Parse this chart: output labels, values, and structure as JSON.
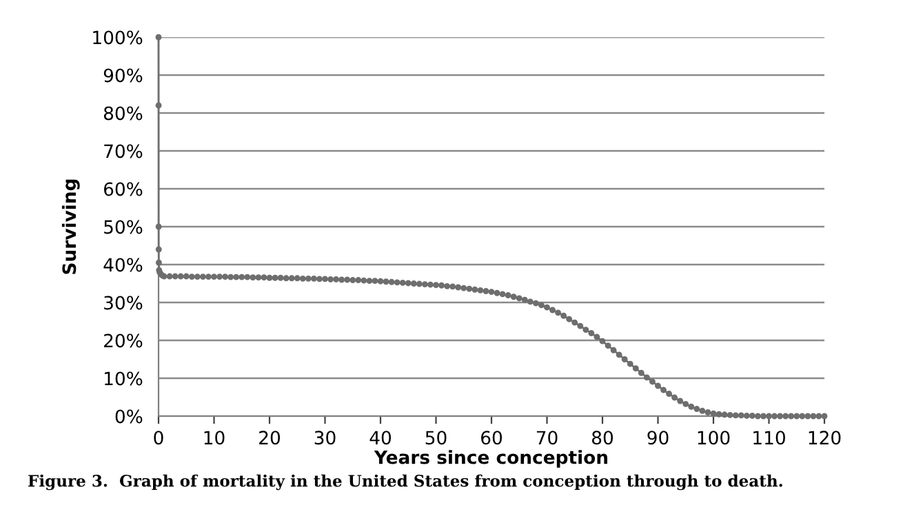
{
  "chart_data": {
    "type": "line",
    "xlabel": "Years since conception",
    "ylabel": "Surviving",
    "annotations": [
      "Figure 3.  Graph of mortality in the United States from conception through to death."
    ],
    "series": [
      {
        "color": "#6e6e6e",
        "x": [
          0,
          0.01,
          0.02,
          0.03,
          0.05,
          0.1,
          0.2,
          0.4,
          0.7,
          1,
          2,
          3,
          4,
          5,
          6,
          7,
          8,
          9,
          10,
          11,
          12,
          13,
          14,
          15,
          16,
          17,
          18,
          19,
          20,
          21,
          22,
          23,
          24,
          25,
          26,
          27,
          28,
          29,
          30,
          31,
          32,
          33,
          34,
          35,
          36,
          37,
          38,
          39,
          40,
          41,
          42,
          43,
          44,
          45,
          46,
          47,
          48,
          49,
          50,
          51,
          52,
          53,
          54,
          55,
          56,
          57,
          58,
          59,
          60,
          61,
          62,
          63,
          64,
          65,
          66,
          67,
          68,
          69,
          70,
          71,
          72,
          73,
          74,
          75,
          76,
          77,
          78,
          79,
          80,
          81,
          82,
          83,
          84,
          85,
          86,
          87,
          88,
          89,
          90,
          91,
          92,
          93,
          94,
          95,
          96,
          97,
          98,
          99,
          100,
          101,
          102,
          103,
          104,
          105,
          106,
          107,
          108,
          109,
          110,
          111,
          112,
          113,
          114,
          115,
          116,
          117,
          118,
          119,
          120
        ],
        "values": [
          100,
          82,
          50,
          44,
          40.5,
          38.5,
          38,
          37.5,
          37.1,
          36.9,
          36.9,
          36.9,
          36.9,
          36.9,
          36.8,
          36.8,
          36.8,
          36.8,
          36.8,
          36.8,
          36.8,
          36.7,
          36.7,
          36.7,
          36.7,
          36.6,
          36.6,
          36.6,
          36.5,
          36.5,
          36.5,
          36.4,
          36.4,
          36.4,
          36.3,
          36.3,
          36.3,
          36.2,
          36.2,
          36.1,
          36.1,
          36.0,
          36.0,
          35.9,
          35.9,
          35.8,
          35.7,
          35.7,
          35.6,
          35.5,
          35.4,
          35.3,
          35.2,
          35.1,
          35.0,
          34.9,
          34.8,
          34.7,
          34.6,
          34.5,
          34.3,
          34.2,
          34.0,
          33.8,
          33.6,
          33.4,
          33.2,
          33.0,
          32.8,
          32.5,
          32.2,
          31.9,
          31.5,
          31.1,
          30.7,
          30.2,
          29.8,
          29.3,
          28.7,
          28.0,
          27.3,
          26.5,
          25.6,
          24.7,
          23.8,
          22.8,
          21.9,
          20.9,
          19.8,
          18.6,
          17.4,
          16.2,
          15.0,
          13.8,
          12.6,
          11.4,
          10.2,
          9.1,
          8.0,
          6.9,
          5.9,
          4.9,
          4.0,
          3.2,
          2.5,
          1.9,
          1.4,
          1.0,
          0.7,
          0.5,
          0.4,
          0.3,
          0.2,
          0.2,
          0.1,
          0.1,
          0,
          0,
          0,
          0,
          0,
          0,
          0,
          0,
          0,
          0,
          0,
          0,
          0
        ]
      }
    ],
    "xlim": [
      0,
      120
    ],
    "xticks": [
      0,
      10,
      20,
      30,
      40,
      50,
      60,
      70,
      80,
      90,
      100,
      110,
      120
    ],
    "ylim": [
      0,
      100
    ],
    "yticks": [
      {
        "value": 0,
        "label": "0%"
      },
      {
        "value": 10,
        "label": "10%"
      },
      {
        "value": 20,
        "label": "20%"
      },
      {
        "value": 30,
        "label": "30%"
      },
      {
        "value": 40,
        "label": "40%"
      },
      {
        "value": 50,
        "label": "50%"
      },
      {
        "value": 60,
        "label": "60%"
      },
      {
        "value": 70,
        "label": "70%"
      },
      {
        "value": 80,
        "label": "80%"
      },
      {
        "value": 90,
        "label": "90%"
      },
      {
        "value": 100,
        "label": "100%"
      }
    ],
    "grid": "y",
    "legend": false,
    "marker": "circle",
    "line_style": "solid"
  }
}
